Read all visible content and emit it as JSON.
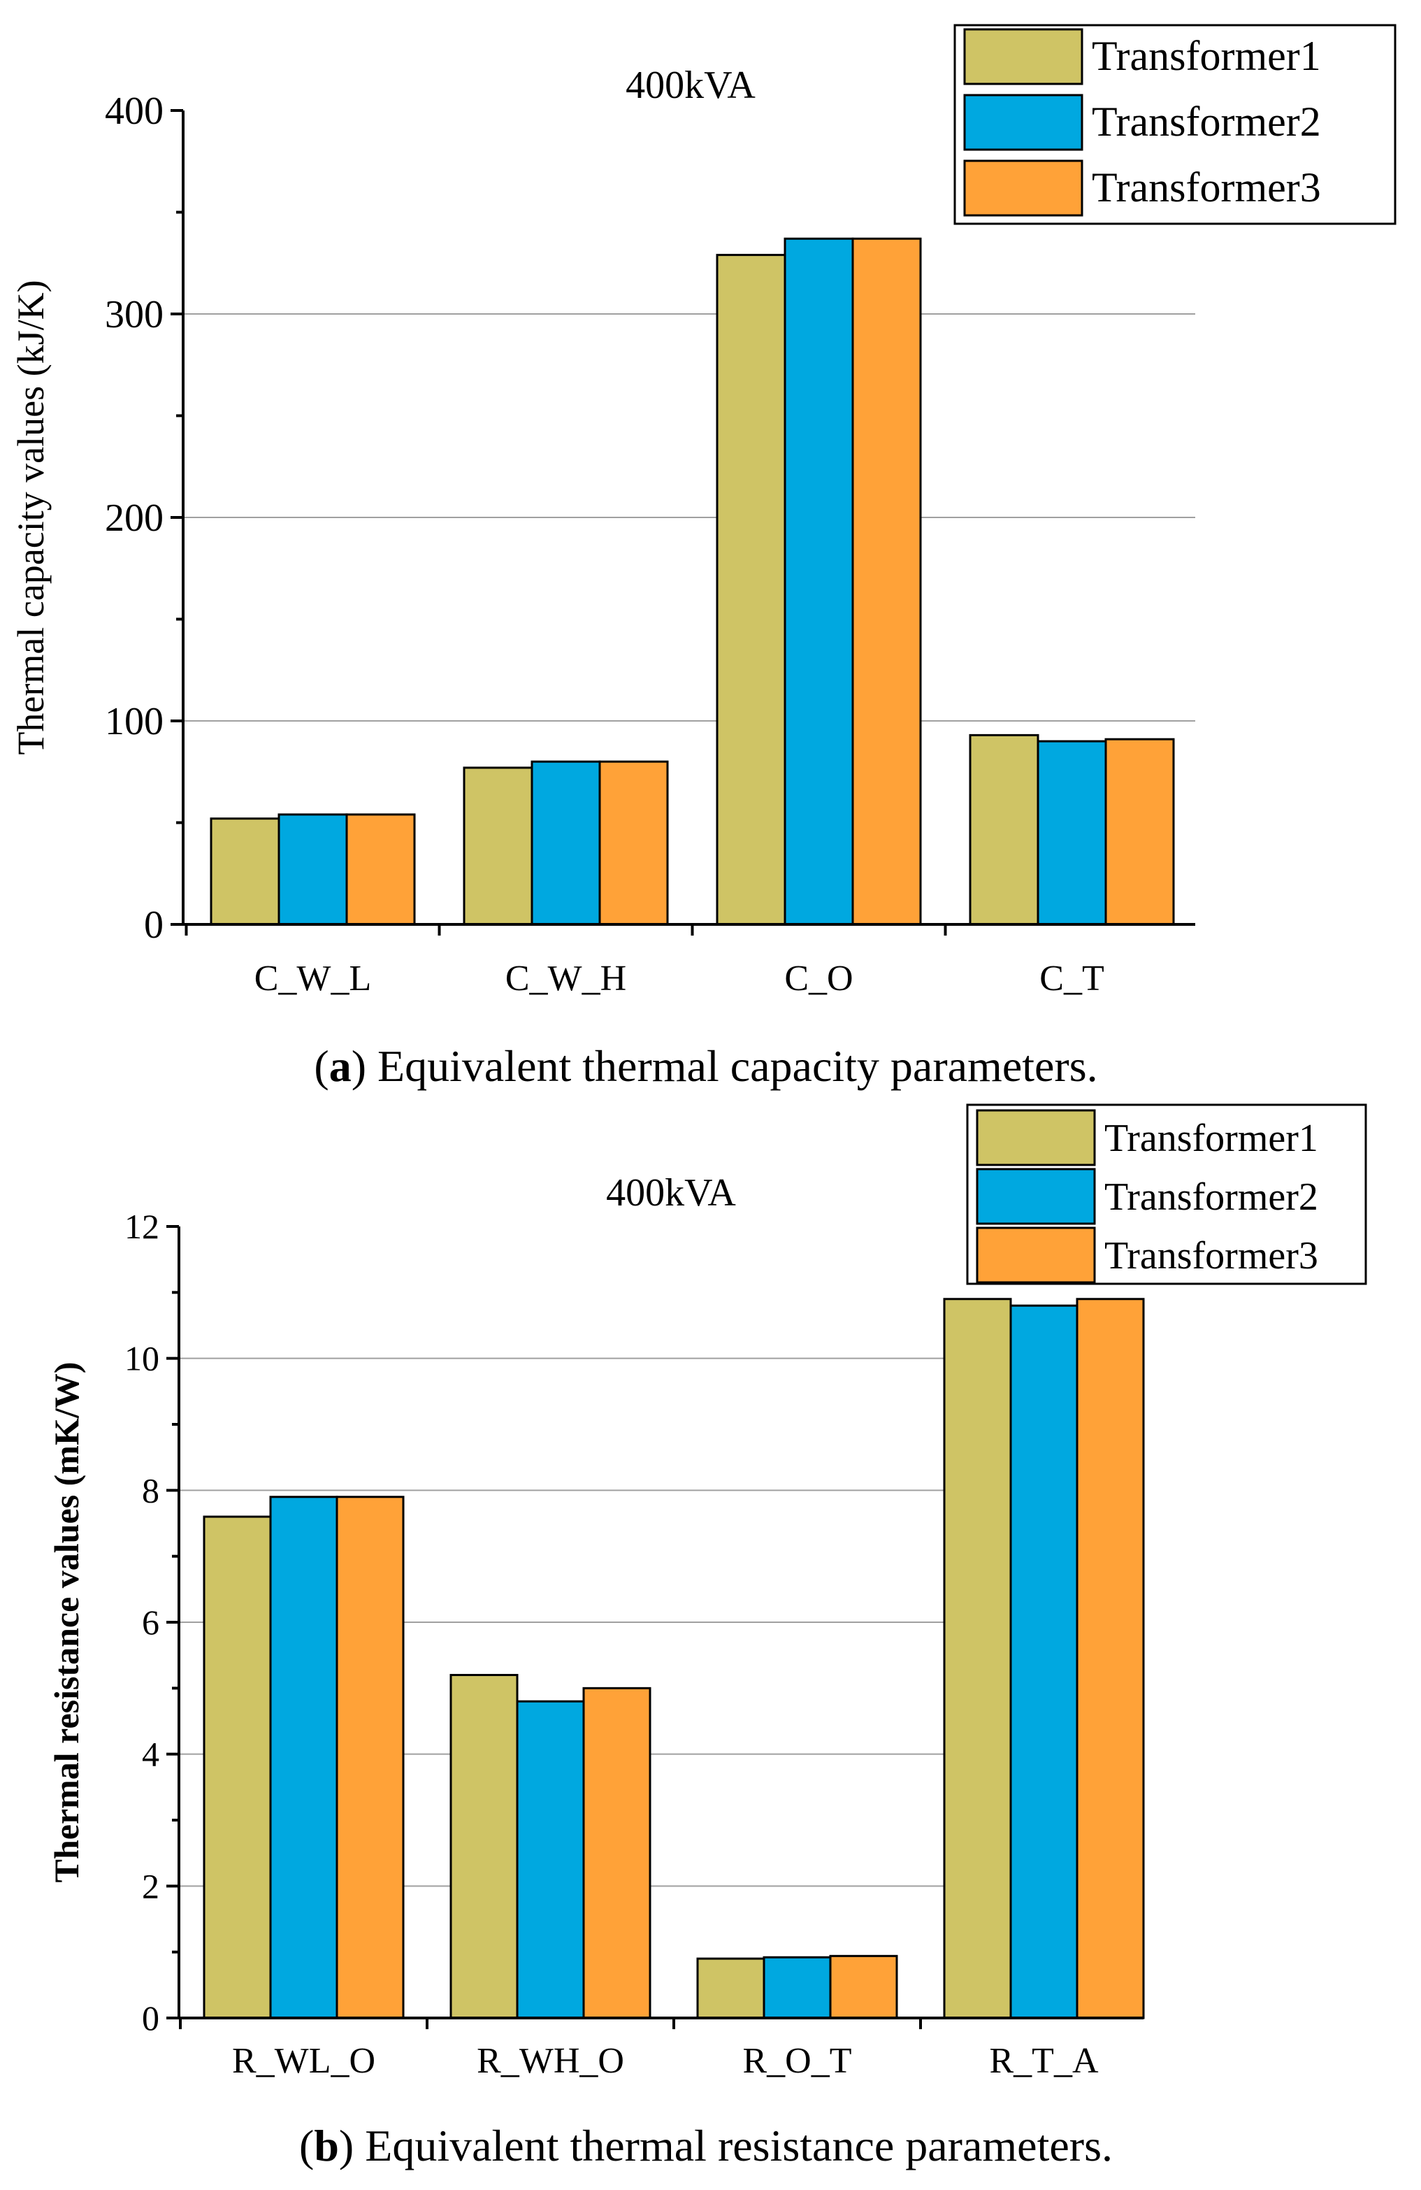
{
  "chart_data": [
    {
      "type": "bar",
      "title": "400kVA",
      "xlabel": "",
      "ylabel": "Thermal capacity values (kJ/K)",
      "ylim": [
        0,
        400
      ],
      "yticks": [
        0,
        100,
        200,
        300,
        400
      ],
      "categories": [
        "C_W_L",
        "C_W_H",
        "C_O",
        "C_T"
      ],
      "series": [
        {
          "name": "Transformer1",
          "color": "#cfc465",
          "values": [
            52,
            77,
            329,
            93
          ]
        },
        {
          "name": "Transformer2",
          "color": "#00a8e0",
          "values": [
            54,
            80,
            337,
            90
          ]
        },
        {
          "name": "Transformer3",
          "color": "#ffa238",
          "values": [
            54,
            80,
            337,
            91
          ]
        }
      ],
      "legend_position": "top-right",
      "grid": true,
      "caption_prefix": "(a)",
      "caption_bold": "a",
      "caption_text": "Equivalent thermal capacity parameters."
    },
    {
      "type": "bar",
      "title": "400kVA",
      "xlabel": "",
      "ylabel": "Thermal resistance values (mK/W)",
      "ylim": [
        0,
        12
      ],
      "yticks": [
        0,
        2,
        4,
        6,
        8,
        10,
        12
      ],
      "categories": [
        "R_WL_O",
        "R_WH_O",
        "R_O_T",
        "R_T_A"
      ],
      "series": [
        {
          "name": "Transformer1",
          "color": "#cfc465",
          "values": [
            7.6,
            5.2,
            0.9,
            10.9
          ]
        },
        {
          "name": "Transformer2",
          "color": "#00a8e0",
          "values": [
            7.9,
            4.8,
            0.92,
            10.8
          ]
        },
        {
          "name": "Transformer3",
          "color": "#ffa238",
          "values": [
            7.9,
            5.0,
            0.94,
            10.9
          ]
        }
      ],
      "legend_position": "top-right",
      "grid": true,
      "caption_prefix": "(b)",
      "caption_bold": "b",
      "caption_text": "Equivalent thermal resistance parameters."
    }
  ]
}
